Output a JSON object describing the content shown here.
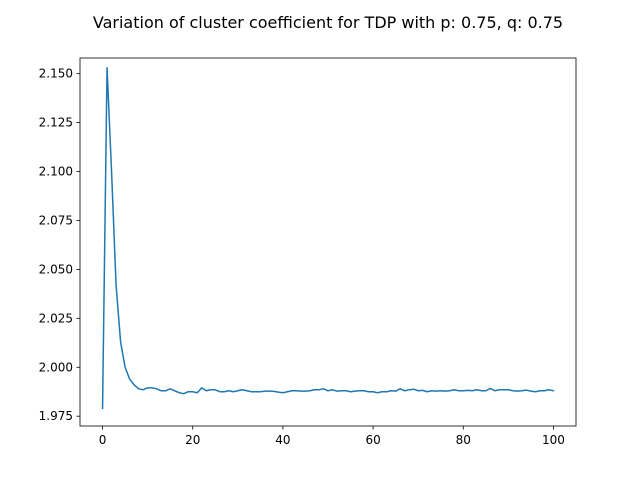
{
  "chart_data": {
    "type": "line",
    "title": "Variation of cluster coefficient for TDP with p: 0.75, q: 0.75",
    "xlabel": "",
    "ylabel": "",
    "xlim": [
      -5,
      105
    ],
    "ylim": [
      1.97,
      2.158
    ],
    "grid": false,
    "xticks": [
      0,
      20,
      40,
      60,
      80,
      100
    ],
    "xtick_labels": [
      "0",
      "20",
      "40",
      "60",
      "80",
      "100"
    ],
    "yticks": [
      1.975,
      2.0,
      2.025,
      2.05,
      2.075,
      2.1,
      2.125,
      2.15
    ],
    "ytick_labels": [
      "1.975",
      "2.000",
      "2.025",
      "2.050",
      "2.075",
      "2.100",
      "2.125",
      "2.150"
    ],
    "series_color": "#1f77b4",
    "series": [
      {
        "x": [
          0,
          1,
          2,
          3,
          4,
          5,
          6,
          7,
          8,
          9,
          10,
          11,
          12,
          13,
          14,
          15,
          16,
          17,
          18,
          19,
          20,
          21,
          22,
          23,
          24,
          25,
          26,
          27,
          28,
          29,
          30,
          31,
          32,
          33,
          34,
          35,
          36,
          37,
          38,
          39,
          40,
          41,
          42,
          43,
          44,
          45,
          46,
          47,
          48,
          49,
          50,
          51,
          52,
          53,
          54,
          55,
          56,
          57,
          58,
          59,
          60,
          61,
          62,
          63,
          64,
          65,
          66,
          67,
          68,
          69,
          70,
          71,
          72,
          73,
          74,
          75,
          76,
          77,
          78,
          79,
          80,
          81,
          82,
          83,
          84,
          85,
          86,
          87,
          88,
          89,
          90,
          91,
          92,
          93,
          94,
          95,
          96,
          97,
          98,
          99,
          100
        ],
        "y": [
          1.979,
          2.153,
          2.1,
          2.042,
          2.013,
          2.0,
          1.994,
          1.991,
          1.989,
          1.9885,
          1.9895,
          1.9895,
          1.989,
          1.988,
          1.988,
          1.989,
          1.988,
          1.987,
          1.9865,
          1.9875,
          1.9875,
          1.987,
          1.9895,
          1.988,
          1.9885,
          1.9885,
          1.9875,
          1.9875,
          1.988,
          1.9875,
          1.988,
          1.9885,
          1.988,
          1.9875,
          1.9875,
          1.9875,
          1.9878,
          1.9878,
          1.9877,
          1.9873,
          1.987,
          1.9875,
          1.988,
          1.988,
          1.9878,
          1.9878,
          1.988,
          1.9885,
          1.9885,
          1.989,
          1.988,
          1.9885,
          1.9878,
          1.988,
          1.988,
          1.9875,
          1.9878,
          1.988,
          1.988,
          1.9875,
          1.9875,
          1.987,
          1.9875,
          1.9875,
          1.988,
          1.9878,
          1.989,
          1.988,
          1.9885,
          1.9888,
          1.988,
          1.9882,
          1.9875,
          1.988,
          1.9878,
          1.988,
          1.9878,
          1.988,
          1.9885,
          1.988,
          1.988,
          1.9882,
          1.988,
          1.9885,
          1.988,
          1.988,
          1.9892,
          1.988,
          1.9885,
          1.9885,
          1.9885,
          1.988,
          1.9878,
          1.988,
          1.9883,
          1.9878,
          1.9875,
          1.988,
          1.988,
          1.9885,
          1.988
        ]
      }
    ]
  }
}
